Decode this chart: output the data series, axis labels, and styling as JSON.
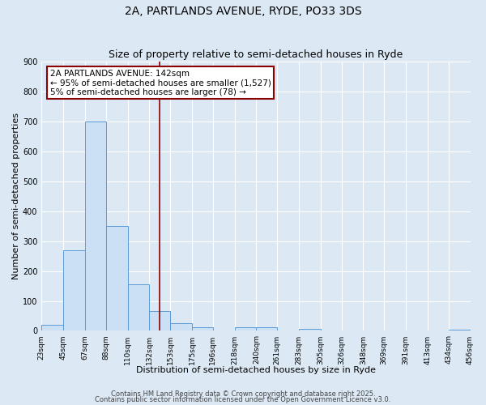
{
  "title1": "2A, PARTLANDS AVENUE, RYDE, PO33 3DS",
  "title2": "Size of property relative to semi-detached houses in Ryde",
  "xlabel": "Distribution of semi-detached houses by size in Ryde",
  "ylabel": "Number of semi-detached properties",
  "bin_edges": [
    23,
    45,
    67,
    88,
    110,
    132,
    153,
    175,
    196,
    218,
    240,
    261,
    283,
    305,
    326,
    348,
    369,
    391,
    413,
    434,
    456
  ],
  "bar_heights": [
    20,
    270,
    700,
    350,
    155,
    65,
    25,
    12,
    0,
    12,
    12,
    0,
    8,
    0,
    0,
    0,
    0,
    0,
    0,
    5
  ],
  "bar_color": "#cce0f5",
  "bar_edge_color": "#5b9bd5",
  "vline_x": 142,
  "vline_color": "#8b0000",
  "ann_line1": "2A PARTLANDS AVENUE: 142sqm",
  "ann_line2": "← 95% of semi-detached houses are smaller (1,527)",
  "ann_line3": "5% of semi-detached houses are larger (78) →",
  "annotation_box_color": "#8b0000",
  "annotation_box_bg": "#ffffff",
  "ylim": [
    0,
    900
  ],
  "yticks": [
    0,
    100,
    200,
    300,
    400,
    500,
    600,
    700,
    800,
    900
  ],
  "background_color": "#dce9f5",
  "plot_bg_color": "#dce9f5",
  "grid_color": "#ffffff",
  "footnote1": "Contains HM Land Registry data © Crown copyright and database right 2025.",
  "footnote2": "Contains public sector information licensed under the Open Government Licence v3.0.",
  "title1_fontsize": 10,
  "title2_fontsize": 9,
  "tick_label_fontsize": 6.5,
  "axis_label_fontsize": 8,
  "ann_fontsize": 7.5
}
